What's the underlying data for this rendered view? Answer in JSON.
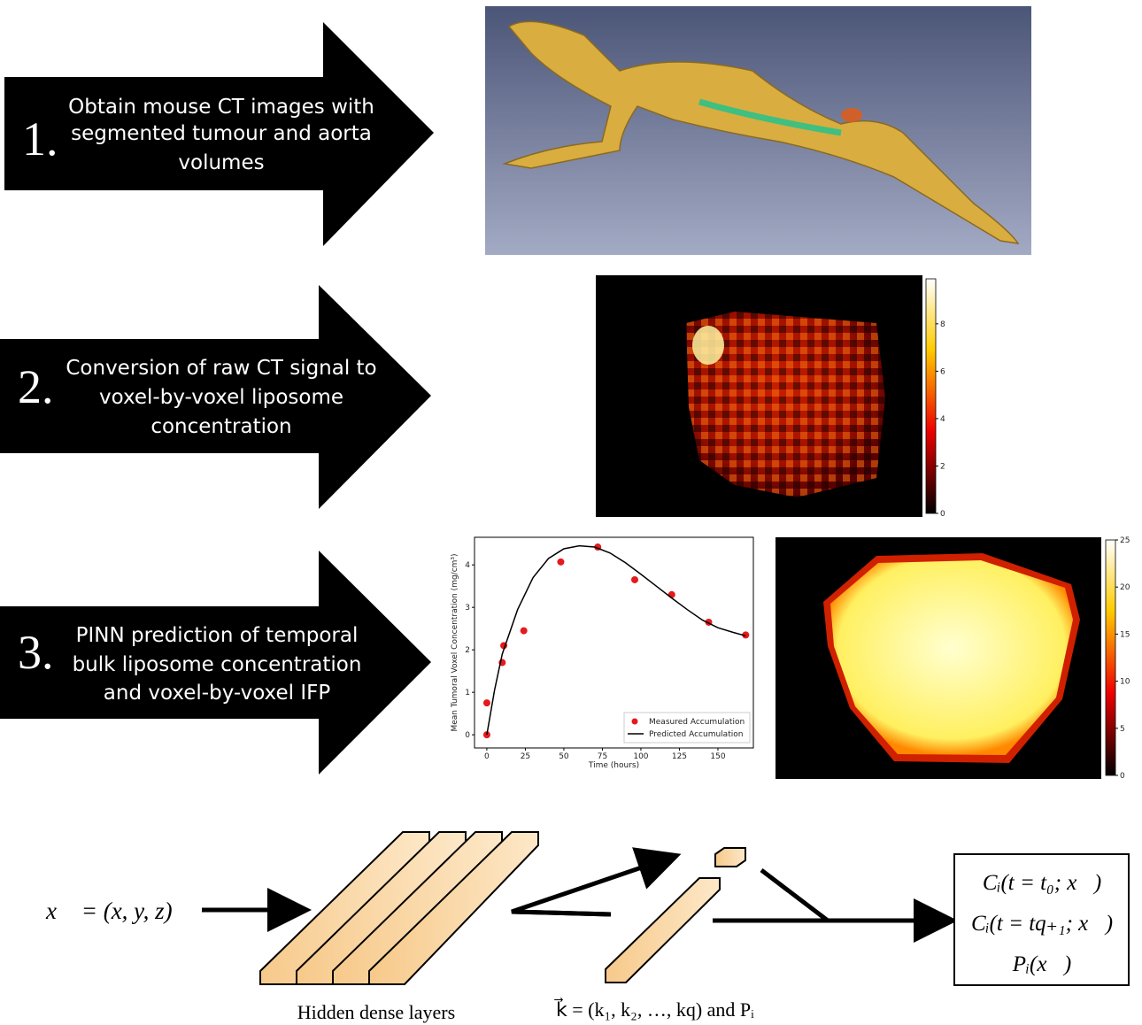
{
  "steps": [
    {
      "number": "1.",
      "text": [
        "Obtain mouse CT images with",
        "segmented tumour and aorta",
        "volumes"
      ]
    },
    {
      "number": "2.",
      "text": [
        "Conversion of raw CT signal to",
        "voxel-by-voxel liposome",
        "concentration"
      ]
    },
    {
      "number": "3.",
      "text": [
        "PINN prediction of temporal",
        "bulk liposome concentration",
        "and voxel-by-voxel IFP"
      ]
    }
  ],
  "chart_data": {
    "type": "line",
    "xlabel": "Time (hours)",
    "ylabel": "Mean Tumoral Voxel Concentration (mg/cm³)",
    "xlim": [
      -8,
      173
    ],
    "ylim": [
      -0.31,
      4.65
    ],
    "xticks": [
      0,
      25,
      50,
      75,
      100,
      125,
      150
    ],
    "yticks": [
      0,
      1,
      2,
      3,
      4
    ],
    "legend": "lower right",
    "series": [
      {
        "name": "Measured Accumulation",
        "type": "scatter",
        "color": "#e41a1c",
        "x": [
          0,
          0,
          10,
          11,
          24,
          48,
          72,
          96,
          120,
          144,
          168
        ],
        "values": [
          0.0,
          0.75,
          1.7,
          2.1,
          2.45,
          4.07,
          4.42,
          3.65,
          3.3,
          2.65,
          2.35
        ]
      },
      {
        "name": "Predicted Accumulation",
        "type": "line",
        "color": "#000000",
        "x": [
          0,
          5,
          10,
          20,
          30,
          40,
          50,
          60,
          70,
          80,
          90,
          100,
          110,
          120,
          130,
          140,
          150,
          160,
          168
        ],
        "values": [
          0,
          1.05,
          1.9,
          2.95,
          3.7,
          4.15,
          4.38,
          4.45,
          4.42,
          4.28,
          4.05,
          3.78,
          3.5,
          3.22,
          2.95,
          2.7,
          2.52,
          2.41,
          2.33
        ]
      }
    ]
  },
  "colorbars": [
    {
      "clim": [
        0,
        9.9
      ],
      "ticks": [
        0,
        2,
        4,
        6,
        8
      ]
    },
    {
      "clim": [
        0,
        25
      ],
      "ticks": [
        0,
        5,
        10,
        15,
        20,
        25
      ]
    }
  ],
  "network": {
    "input": "x⃗ = (x, y, z)",
    "hidden_label": "Hidden dense layers",
    "params_label": "k⃗ = (k₁, k₂, …, kq) and Pᵢ",
    "outputs": [
      "Cᵢ(t = t₀; x⃗)",
      "Cᵢ(t = tq₊₁; x⃗)",
      "Pᵢ(x⃗)"
    ]
  }
}
